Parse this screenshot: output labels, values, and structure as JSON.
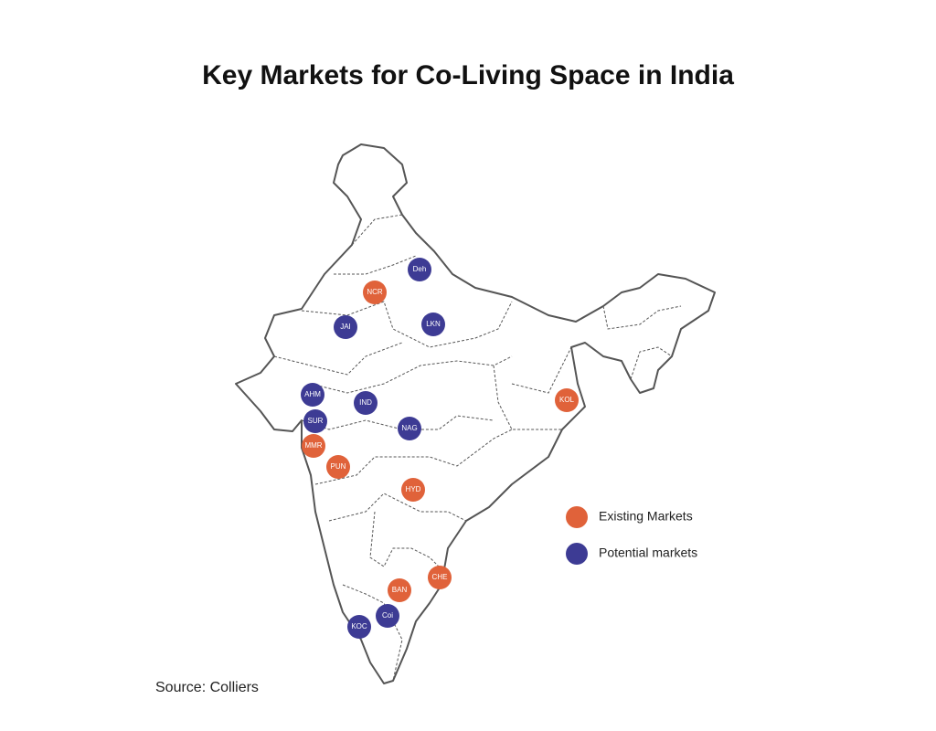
{
  "title": "Key Markets for Co-Living Space in India",
  "legend": [
    {
      "label": "Existing Markets",
      "color": "#e0623a",
      "markets": [
        "NCR",
        "KOL",
        "MMR",
        "PUN",
        "HYD",
        "CHE",
        "BAN"
      ]
    },
    {
      "label": "Potential markets",
      "color": "#3d3b94",
      "markets": [
        "Deh",
        "JAI",
        "LKN",
        "AHM",
        "IND",
        "SUR",
        "NAG",
        "Coi",
        "KOC"
      ]
    }
  ],
  "source": "Source: Colliers"
}
